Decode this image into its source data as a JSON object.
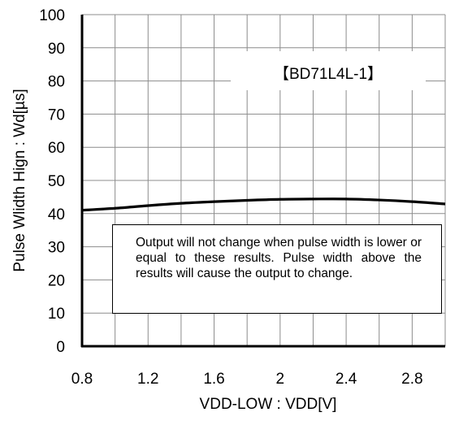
{
  "chart_data": {
    "type": "line",
    "title": "",
    "xlabel": "VDD-LOW : VDD[V]",
    "ylabel": "Pulse Wlidth Hign : Wd[µs]",
    "xlim": [
      0.8,
      3.0
    ],
    "ylim": [
      0,
      100
    ],
    "x_ticks": [
      "0.8",
      "1.2",
      "1.6",
      "2",
      "2.4",
      "2.8"
    ],
    "x_tick_values": [
      0.8,
      1.2,
      1.6,
      2.0,
      2.4,
      2.8
    ],
    "y_ticks": [
      "0",
      "10",
      "20",
      "30",
      "40",
      "50",
      "60",
      "70",
      "80",
      "90",
      "100"
    ],
    "y_tick_values": [
      0,
      10,
      20,
      30,
      40,
      50,
      60,
      70,
      80,
      90,
      100
    ],
    "grid": true,
    "series": [
      {
        "x": [
          0.8,
          1.0,
          1.2,
          1.4,
          1.6,
          1.8,
          2.0,
          2.2,
          2.4,
          2.6,
          2.8,
          3.0
        ],
        "y": [
          41.0,
          41.6,
          42.4,
          43.1,
          43.6,
          44.0,
          44.3,
          44.4,
          44.4,
          44.1,
          43.6,
          42.9
        ],
        "color": "#000000"
      }
    ],
    "annotations": {
      "device_tag": "【BD71L4L-1】",
      "note": "Output will not change when pulse width is lower or equal to these results. Pulse width above the results will cause the output to change."
    }
  }
}
